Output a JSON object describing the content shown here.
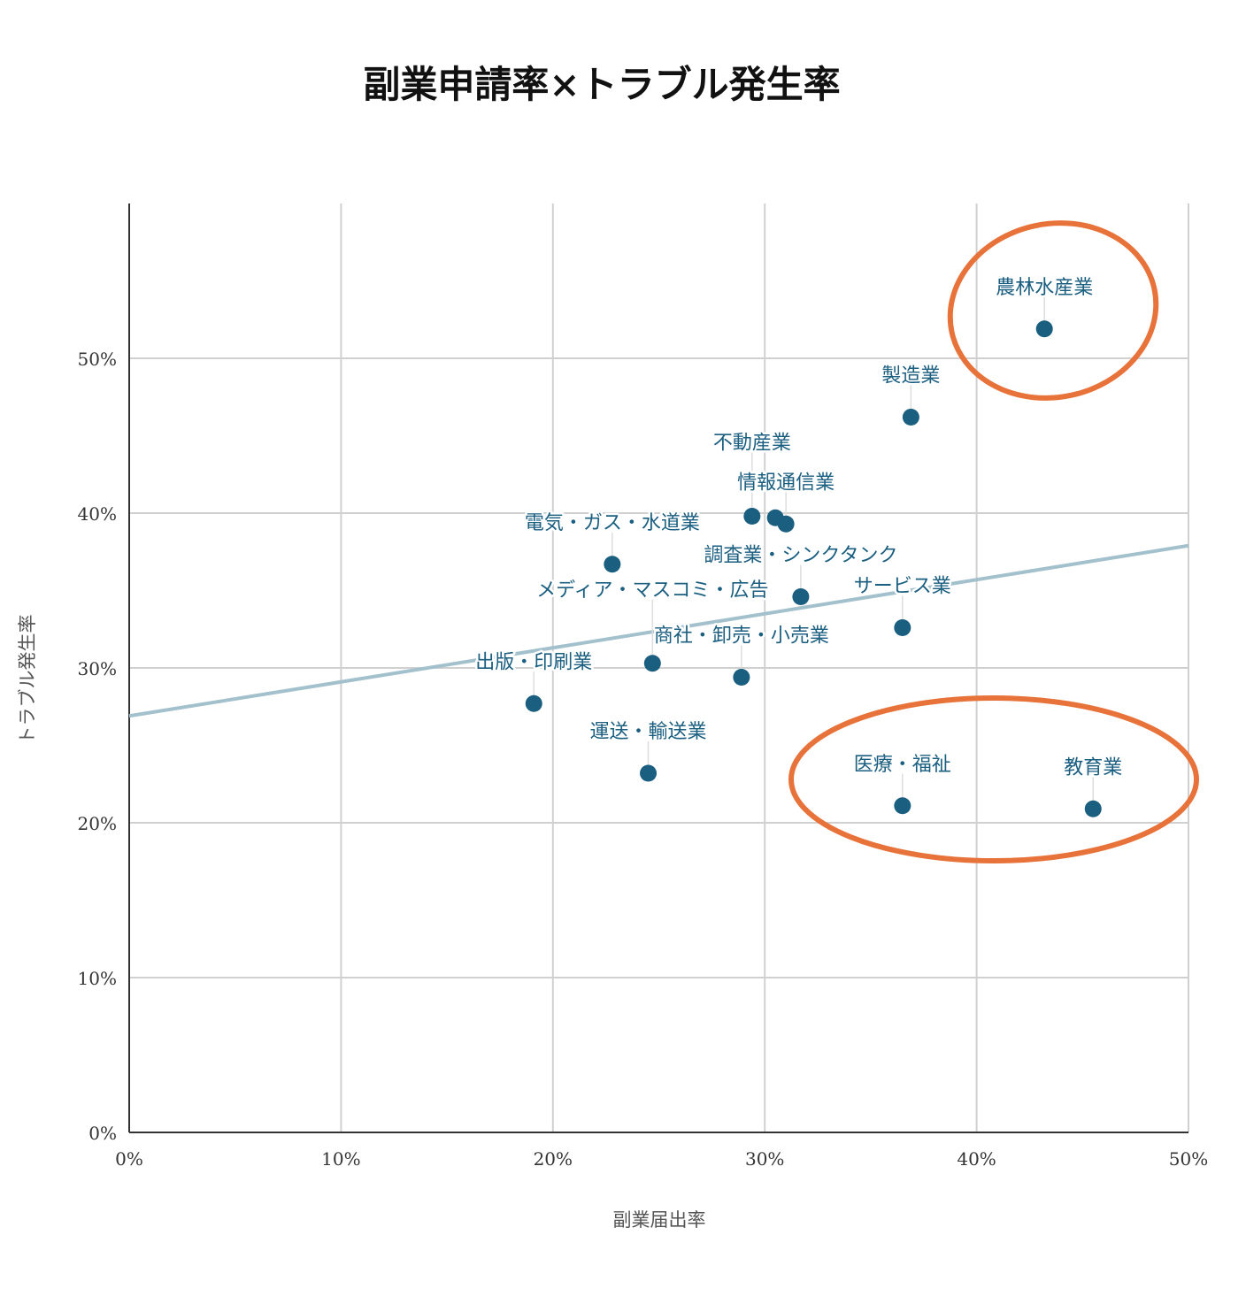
{
  "chart_data": {
    "type": "scatter",
    "title": "副業申請率×トラブル発生率",
    "xlabel": "副業届出率",
    "ylabel": "トラブル発生率",
    "xlim": [
      0,
      50
    ],
    "ylim": [
      0,
      60
    ],
    "x_ticks": [
      "0%",
      "10%",
      "20%",
      "30%",
      "40%",
      "50%"
    ],
    "y_ticks": [
      "0%",
      "10%",
      "20%",
      "30%",
      "40%",
      "50%"
    ],
    "grid": true,
    "colors": {
      "points": "#1a5e80",
      "trendline": "#a3c1cc",
      "highlight": "#e8733a"
    },
    "points": [
      {
        "label": "農林水産業",
        "x": 43.2,
        "y": 51.9
      },
      {
        "label": "製造業",
        "x": 36.9,
        "y": 46.2
      },
      {
        "label": "不動産業",
        "x": 29.4,
        "y": 39.8
      },
      {
        "label": "",
        "x": 30.5,
        "y": 39.7
      },
      {
        "label": "情報通信業",
        "x": 31.0,
        "y": 39.3
      },
      {
        "label": "電気・ガス・水道業",
        "x": 22.8,
        "y": 36.7
      },
      {
        "label": "調査業・シンクタンク",
        "x": 31.7,
        "y": 34.6
      },
      {
        "label": "サービス業",
        "x": 36.5,
        "y": 32.6
      },
      {
        "label": "メディア・マスコミ・広告",
        "x": 24.7,
        "y": 30.3
      },
      {
        "label": "商社・卸売・小売業",
        "x": 28.9,
        "y": 29.4
      },
      {
        "label": "出版・印刷業",
        "x": 19.1,
        "y": 27.7
      },
      {
        "label": "運送・輸送業",
        "x": 24.5,
        "y": 23.2
      },
      {
        "label": "医療・福祉",
        "x": 36.5,
        "y": 21.1
      },
      {
        "label": "教育業",
        "x": 45.5,
        "y": 20.9
      }
    ],
    "trendline": {
      "x": [
        0,
        50
      ],
      "y": [
        26.9,
        37.9
      ]
    }
  }
}
